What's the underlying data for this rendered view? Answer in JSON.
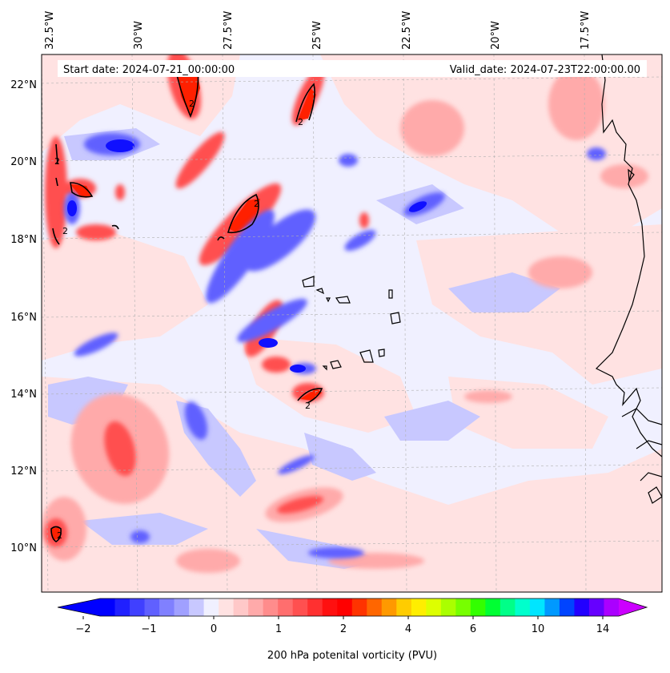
{
  "map": {
    "start_label": "Start date: 2024-07-21_00:00:00",
    "valid_label": "Valid_date: 2024-07-23T22:00:00.00",
    "lon_labels": [
      "32.5°W",
      "30°W",
      "27.5°W",
      "25°W",
      "22.5°W",
      "20°W",
      "17.5°W"
    ],
    "lat_labels": [
      "22°N",
      "20°N",
      "18°N",
      "16°N",
      "14°N",
      "12°N",
      "10°N"
    ],
    "contour_label": "2",
    "background_color": "#f0f0ff"
  },
  "colorbar": {
    "title": "200 hPa potenital vorticity (PVU)",
    "tick_labels": [
      "−2",
      "−1",
      "0",
      "1",
      "2",
      "4",
      "6",
      "10",
      "14"
    ],
    "colors": [
      "#0000ff",
      "#2020ff",
      "#4040ff",
      "#6060ff",
      "#8080ff",
      "#a0a0ff",
      "#c8c8ff",
      "#f0f0ff",
      "#ffe2e2",
      "#ffc8c8",
      "#ffaaaa",
      "#ff8c8c",
      "#ff6e6e",
      "#ff5050",
      "#ff3030",
      "#ff1010",
      "#ff0000",
      "#ff3300",
      "#ff6600",
      "#ff9900",
      "#ffcc00",
      "#ffee00",
      "#ddff00",
      "#aaff00",
      "#77ff00",
      "#33ff00",
      "#00ff33",
      "#00ff88",
      "#00ffcc",
      "#00e5ff",
      "#0099ff",
      "#0044ff",
      "#2200ff",
      "#6600ff",
      "#aa00ff"
    ],
    "extend_min_color": "#0000ff",
    "extend_max_color": "#cc00ff"
  }
}
